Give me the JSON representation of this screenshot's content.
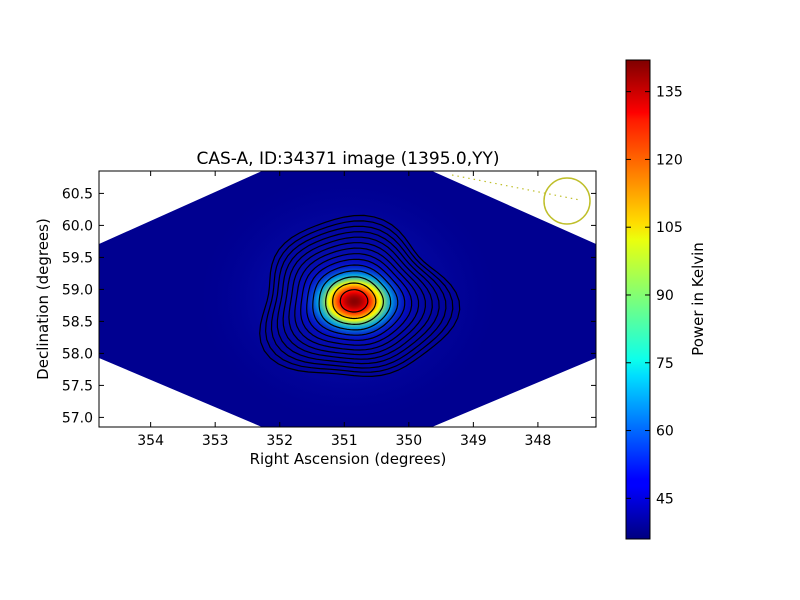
{
  "chart_data": {
    "type": "heatmap",
    "title": "CAS-A, ID:34371 image (1395.0,YY)",
    "xlabel": "Right Ascension (degrees)",
    "ylabel": "Declination (degrees)",
    "xlim": [
      354.8,
      347.1
    ],
    "ylim": [
      56.85,
      60.85
    ],
    "x_ticks": [
      354,
      353,
      352,
      351,
      350,
      349,
      348
    ],
    "y_ticks": [
      57.0,
      57.5,
      58.0,
      58.5,
      59.0,
      59.5,
      60.0,
      60.5
    ],
    "x_tick_labels": [
      "354",
      "353",
      "352",
      "351",
      "350",
      "349",
      "348"
    ],
    "y_tick_labels": [
      "57.0",
      "57.5",
      "58.0",
      "58.5",
      "59.0",
      "59.5",
      "60.0",
      "60.5"
    ],
    "colorscale": "jet",
    "source": {
      "name": "CAS-A",
      "ra": 350.85,
      "dec": 58.82,
      "peak_kelvin": 141,
      "background_kelvin": 38
    },
    "beam_marker": {
      "ra": 347.5,
      "dec": 60.38,
      "color": "#bfbf2a"
    },
    "contours": true,
    "colorbar": {
      "label": "Power in Kelvin",
      "min": 36,
      "max": 142,
      "ticks": [
        45,
        60,
        75,
        90,
        105,
        120,
        135
      ],
      "tick_labels": [
        "45",
        "60",
        "75",
        "90",
        "105",
        "120",
        "135"
      ]
    }
  }
}
